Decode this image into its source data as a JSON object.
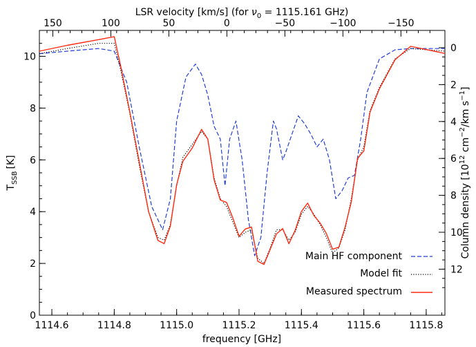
{
  "chart_data": {
    "type": "line",
    "xlabel": "frequency [GHz]",
    "ylabel": "T",
    "ylabel_sub": "SSB",
    "ylabel_unit": "[K]",
    "top_label": "LSR velocity [km/s] (for ",
    "top_label_nu": "ν",
    "top_label_nu_sub": "0",
    "top_label_rest": " = 1115.161 GHz)",
    "right_label_start": "Column density [10",
    "right_label_exp1": "12",
    "right_label_mid": " cm",
    "right_label_exp2": "−2",
    "right_label_mid2": "/km s",
    "right_label_exp3": "−1",
    "right_label_end": "]",
    "xlim": [
      1114.56,
      1115.86
    ],
    "ylim": [
      0,
      11
    ],
    "x_ticks": [
      "1114.6",
      "1114.8",
      "1115.0",
      "1115.2",
      "1115.4",
      "1115.6",
      "1115.8"
    ],
    "y_ticks": [
      "0",
      "2",
      "4",
      "6",
      "8",
      "10"
    ],
    "top_ticks": [
      "150",
      "100",
      "50",
      "0",
      "−50",
      "−100",
      "−150"
    ],
    "right_ticks": [
      "0",
      "2",
      "4",
      "6",
      "8",
      "10",
      "12"
    ],
    "legend_position": "bottom-right",
    "series": [
      {
        "name": "Main HF component",
        "style": "dashed",
        "color": "#1f3fd6",
        "x": [
          1114.56,
          1114.65,
          1114.75,
          1114.8,
          1114.84,
          1114.88,
          1114.92,
          1114.955,
          1114.98,
          1115.0,
          1115.03,
          1115.06,
          1115.08,
          1115.1,
          1115.12,
          1115.14,
          1115.155,
          1115.17,
          1115.19,
          1115.21,
          1115.23,
          1115.25,
          1115.27,
          1115.29,
          1115.31,
          1115.32,
          1115.34,
          1115.35,
          1115.37,
          1115.39,
          1115.41,
          1115.43,
          1115.45,
          1115.47,
          1115.49,
          1115.51,
          1115.53,
          1115.55,
          1115.57,
          1115.59,
          1115.61,
          1115.65,
          1115.7,
          1115.75,
          1115.86
        ],
        "y": [
          10.1,
          10.2,
          10.3,
          10.2,
          9.0,
          6.5,
          4.2,
          3.3,
          4.5,
          7.5,
          9.2,
          9.7,
          9.3,
          8.5,
          7.3,
          6.8,
          5.0,
          6.8,
          7.5,
          6.0,
          3.7,
          2.3,
          3.0,
          5.5,
          7.5,
          7.2,
          6.0,
          6.3,
          7.0,
          7.7,
          7.4,
          7.0,
          6.5,
          6.8,
          6.0,
          4.5,
          4.8,
          5.3,
          5.4,
          6.8,
          8.6,
          9.9,
          10.25,
          10.3,
          10.3
        ]
      },
      {
        "name": "Model fit",
        "style": "dotted",
        "color": "#000000",
        "x": [
          1114.56,
          1114.65,
          1114.75,
          1114.8,
          1114.82,
          1114.85,
          1114.88,
          1114.91,
          1114.94,
          1114.96,
          1114.98,
          1115.0,
          1115.02,
          1115.05,
          1115.08,
          1115.1,
          1115.12,
          1115.14,
          1115.16,
          1115.18,
          1115.2,
          1115.22,
          1115.24,
          1115.26,
          1115.28,
          1115.3,
          1115.32,
          1115.34,
          1115.36,
          1115.38,
          1115.4,
          1115.42,
          1115.44,
          1115.46,
          1115.48,
          1115.5,
          1115.52,
          1115.54,
          1115.56,
          1115.58,
          1115.6,
          1115.62,
          1115.65,
          1115.7,
          1115.75,
          1115.86
        ],
        "y": [
          10.1,
          10.3,
          10.5,
          10.5,
          9.5,
          7.8,
          5.8,
          4.0,
          3.0,
          2.9,
          3.5,
          5.0,
          6.1,
          6.6,
          7.1,
          6.8,
          5.3,
          4.5,
          4.2,
          3.6,
          3.0,
          3.2,
          3.3,
          2.2,
          2.0,
          2.6,
          3.3,
          3.3,
          2.9,
          3.2,
          3.9,
          4.2,
          3.9,
          3.5,
          3.0,
          2.4,
          2.6,
          3.3,
          4.5,
          6.0,
          6.5,
          7.9,
          8.8,
          9.9,
          10.3,
          10.2
        ]
      },
      {
        "name": "Measured spectrum",
        "style": "solid",
        "color": "#ff2a10",
        "x": [
          1114.56,
          1114.65,
          1114.75,
          1114.8,
          1114.82,
          1114.85,
          1114.88,
          1114.91,
          1114.94,
          1114.96,
          1114.98,
          1115.0,
          1115.02,
          1115.05,
          1115.08,
          1115.1,
          1115.12,
          1115.14,
          1115.16,
          1115.18,
          1115.2,
          1115.22,
          1115.24,
          1115.26,
          1115.28,
          1115.3,
          1115.32,
          1115.34,
          1115.36,
          1115.38,
          1115.4,
          1115.42,
          1115.44,
          1115.46,
          1115.48,
          1115.5,
          1115.52,
          1115.54,
          1115.56,
          1115.58,
          1115.6,
          1115.62,
          1115.65,
          1115.7,
          1115.75,
          1115.86
        ],
        "y": [
          10.2,
          10.4,
          10.6,
          10.7,
          9.6,
          7.8,
          5.9,
          4.0,
          2.9,
          2.8,
          3.5,
          5.1,
          6.0,
          6.5,
          7.2,
          6.8,
          5.2,
          4.4,
          4.3,
          3.7,
          3.0,
          3.3,
          3.4,
          2.1,
          2.0,
          2.6,
          3.2,
          3.4,
          2.8,
          3.3,
          4.0,
          4.3,
          3.8,
          3.5,
          3.1,
          2.5,
          2.6,
          3.4,
          4.4,
          6.1,
          6.4,
          7.9,
          8.8,
          9.9,
          10.4,
          10.1
        ]
      }
    ]
  }
}
